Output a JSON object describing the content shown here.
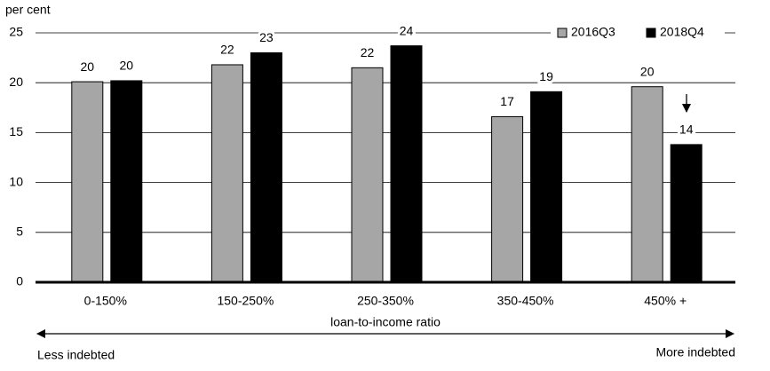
{
  "chart_data": {
    "type": "bar",
    "y_axis_label": "per cent",
    "x_axis_label": "loan-to-income ratio",
    "left_note": "Less indebted",
    "right_note": "More indebted",
    "categories": [
      "0-150%",
      "150-250%",
      "250-350%",
      "350-450%",
      "450% +"
    ],
    "series": [
      {
        "name": "2016Q3",
        "color": "#a6a6a6",
        "values": [
          20.1,
          21.8,
          21.5,
          16.6,
          19.6
        ],
        "value_labels": [
          "20",
          "22",
          "22",
          "17",
          "20"
        ]
      },
      {
        "name": "2018Q4",
        "color": "#000000",
        "values": [
          20.2,
          23.0,
          23.7,
          19.1,
          13.8
        ],
        "value_labels": [
          "20",
          "23",
          "24",
          "19",
          "14"
        ]
      }
    ],
    "ylim": [
      0,
      25
    ],
    "yticks": [
      0,
      5,
      10,
      15,
      20,
      25
    ],
    "grid": true,
    "legend": "top-right"
  }
}
